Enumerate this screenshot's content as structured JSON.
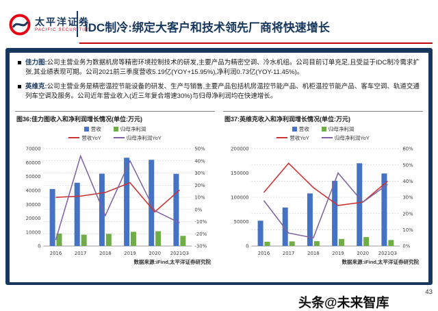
{
  "header": {
    "logo_cn": "太平洋证券",
    "logo_en": "PACIFIC SECURITIES",
    "title": "IDC制冷:绑定大客户和技术领先厂商将快速增长"
  },
  "bullets": [
    {
      "lead": "佳力图:",
      "text": "公司主营业务为数据机房等精密环境控制技术的研发,主要产品为精密空调、冷水机组。公司目前订单充足,且受益于IDC制冷需求扩张,其业绩表现可期。公司2021前三季度营收5.19亿(YOY+15.95%),净利润0.73亿(YOY-11.45%)。"
    },
    {
      "lead": "英维克:",
      "text": "公司主营业务是精密温控节能设备的研发、生产与销售,主要产品包括机房温控节能产品、机柜温控节能产品、客车空调、轨道交通列车空调及服务。公司近年营业收入(近三年复合增速30%)与归母净利润均在快速增长。"
    }
  ],
  "chart_data": [
    {
      "type": "bar",
      "title": "图36:佳力图收入和净利润增长情况(单位:万元)",
      "categories": [
        "2016",
        "2017",
        "2018",
        "2019",
        "2020",
        "2021Q3"
      ],
      "bar_series": [
        {
          "name": "营收",
          "color": "#4472C4",
          "values": [
            41000,
            45500,
            52000,
            63500,
            62000,
            51900
          ]
        },
        {
          "name": "归母净利润",
          "color": "#70AD47",
          "values": [
            9000,
            8100,
            8700,
            10200,
            10600,
            7300
          ]
        }
      ],
      "line_series": [
        {
          "name": "营收YoY",
          "color": "#CC3333",
          "values": [
            10,
            11,
            14,
            22,
            -2,
            16
          ]
        },
        {
          "name": "归母净利润YoY",
          "color": "#8064A2",
          "values": [
            -25,
            44,
            -5,
            40,
            -1,
            -11
          ]
        }
      ],
      "left_axis": {
        "min": 0,
        "max": 70000,
        "step": 10000
      },
      "right_axis": {
        "min": -30,
        "max": 50,
        "step": 10,
        "suffix": "%"
      },
      "source": "数据来源:iFind,太平洋证券研究院"
    },
    {
      "type": "bar",
      "title": "图37:英维克收入和净利润增长情况(单位:万元)",
      "categories": [
        "2016",
        "2017",
        "2018",
        "2019",
        "2020",
        "2021Q3"
      ],
      "bar_series": [
        {
          "name": "营收",
          "color": "#4472C4",
          "values": [
            52000,
            79000,
            108000,
            134000,
            170000,
            149000
          ]
        },
        {
          "name": "归母净利润",
          "color": "#70AD47",
          "values": [
            8700,
            9400,
            9900,
            14400,
            18300,
            12200
          ]
        }
      ],
      "line_series": [
        {
          "name": "营收YoY",
          "color": "#CC3333",
          "values": [
            33,
            51,
            36,
            25,
            27,
            40
          ]
        },
        {
          "name": "归母净利润YoY",
          "color": "#8064A2",
          "values": [
            28,
            8,
            5,
            45,
            27,
            38
          ]
        }
      ],
      "left_axis": {
        "min": 0,
        "max": 200000,
        "step": 50000
      },
      "right_axis": {
        "min": 0,
        "max": 60,
        "step": 10,
        "suffix": "%"
      },
      "source": "数据来源:iFind,太平洋证券研究院"
    }
  ],
  "footer": {
    "page_number": "43",
    "watermark": "头条@未来智库"
  }
}
